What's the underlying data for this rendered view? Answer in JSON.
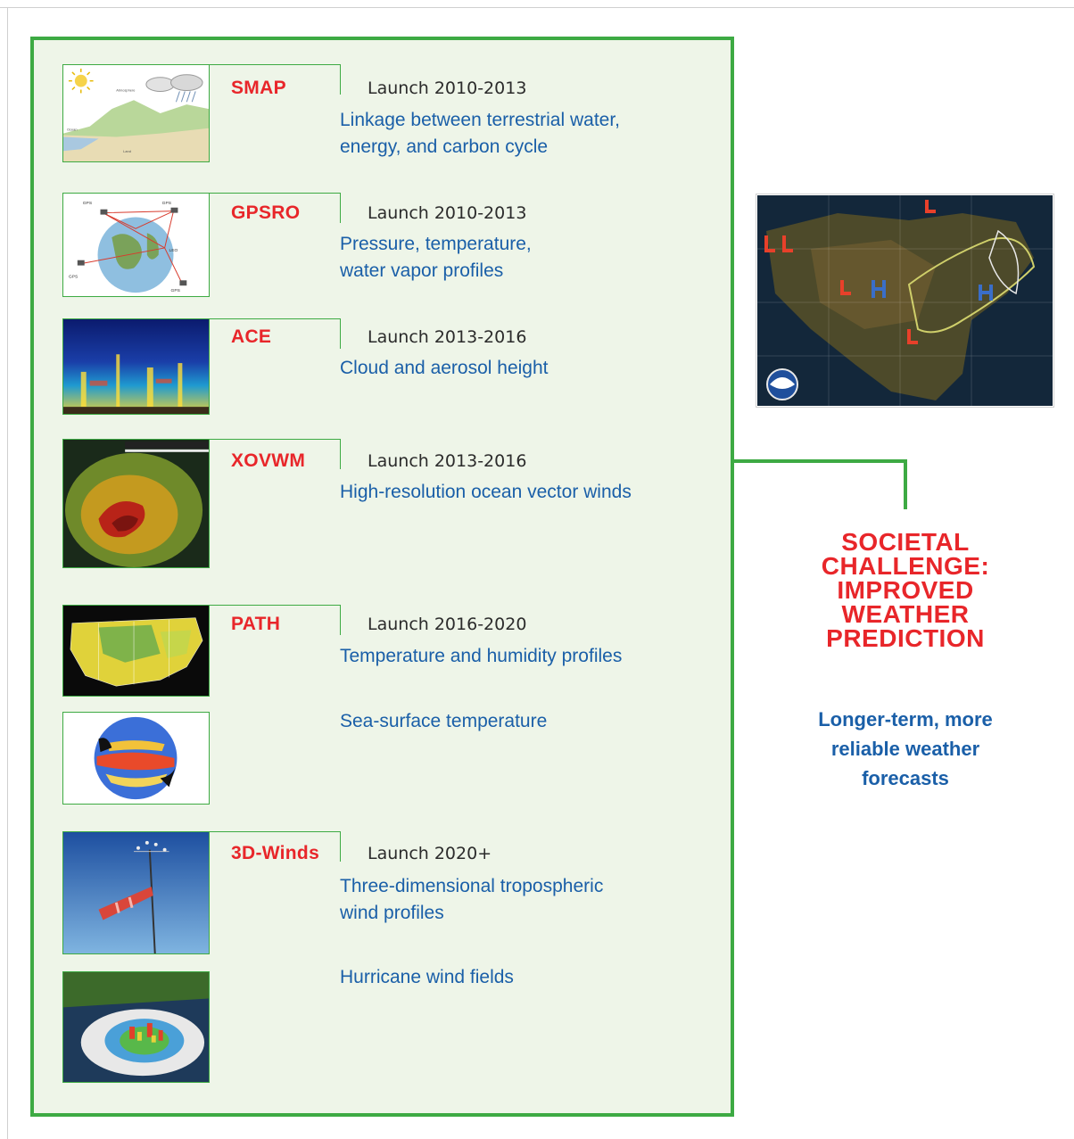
{
  "missions": [
    {
      "id": "smap",
      "name": "SMAP",
      "launch": "Launch 2010-2013",
      "description": "Linkage between terrestrial water,\nenergy, and carbon cycle"
    },
    {
      "id": "gpsro",
      "name": "GPSRO",
      "launch": "Launch 2010-2013",
      "description": "Pressure, temperature,\nwater vapor profiles"
    },
    {
      "id": "ace",
      "name": "ACE",
      "launch": "Launch 2013-2016",
      "description": "Cloud and aerosol height"
    },
    {
      "id": "xovwm",
      "name": "XOVWM",
      "launch": "Launch 2013-2016",
      "description": "High-resolution ocean vector winds"
    },
    {
      "id": "path",
      "name": "PATH",
      "launch": "Launch 2016-2020",
      "description": "Temperature and humidity profiles",
      "extra_description": "Sea-surface temperature"
    },
    {
      "id": "3d-winds",
      "name": "3D-Winds",
      "launch": "Launch 2020+",
      "description": "Three-dimensional tropospheric\nwind profiles",
      "extra_description": "Hurricane wind fields"
    }
  ],
  "smap_image_labels": {
    "atmosphere": "Atmosphere",
    "ocean": "Ocean",
    "land": "Land"
  },
  "gpsro_image_labels": {
    "gps": "GPS",
    "leo": "LEO"
  },
  "challenge": {
    "title": "SOCIETAL\nCHALLENGE:\nIMPROVED\nWEATHER\nPREDICTION",
    "subtitle": "Longer-term, more\nreliable weather\nforecasts"
  },
  "colors": {
    "frame_green": "#3daa43",
    "panel_fill": "#eef5e8",
    "mission_red": "#e8262a",
    "desc_blue": "#1a5fa8"
  }
}
